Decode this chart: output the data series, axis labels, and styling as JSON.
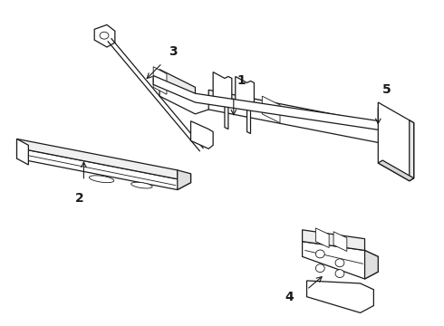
{
  "background_color": "#ffffff",
  "line_color": "#1a1a1a",
  "figsize": [
    4.9,
    3.6
  ],
  "dpi": 100,
  "label_fontsize": 10,
  "label_fontweight": "bold"
}
